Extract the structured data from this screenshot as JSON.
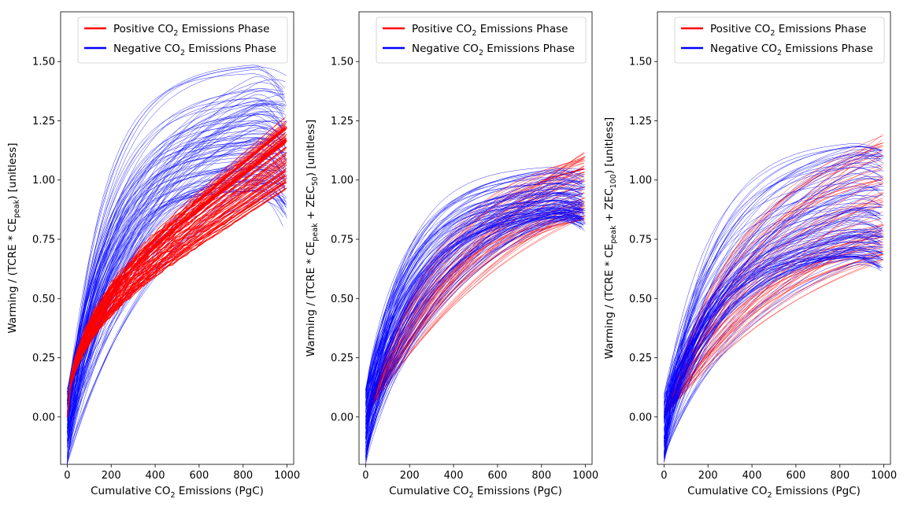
{
  "chart_data": [
    {
      "type": "line",
      "xlabel": {
        "pre": "Cumulative CO",
        "sub": "2",
        "post": " Emissions (PgC)"
      },
      "ylabel": {
        "pre": "Warming / (TCRE * CE",
        "sub": "peak",
        "post": ") [unitless]"
      },
      "xlim": [
        -30,
        1030
      ],
      "ylim": [
        -0.2,
        1.71
      ],
      "xticks": [
        0,
        200,
        400,
        600,
        800,
        1000
      ],
      "yticks": [
        0.0,
        0.25,
        0.5,
        0.75,
        1.0,
        1.25,
        1.5
      ],
      "legend_position": "top-right",
      "series": [
        {
          "name": {
            "pre": "Positive CO",
            "sub": "2",
            "post": " Emissions Phase"
          },
          "color": "#ff0000",
          "representative": {
            "x": [
              0,
              100,
              200,
              300,
              400,
              500,
              600,
              700,
              800,
              900,
              1000
            ],
            "y": [
              0.0,
              0.32,
              0.45,
              0.55,
              0.64,
              0.72,
              0.8,
              0.86,
              0.91,
              0.96,
              1.0
            ]
          },
          "spread_at_end": [
            0.95,
            1.28
          ]
        },
        {
          "name": {
            "pre": "Negative CO",
            "sub": "2",
            "post": " Emissions Phase"
          },
          "color": "#0000ff",
          "representative": {
            "x": [
              1000,
              900,
              800,
              700,
              600,
              500,
              400,
              300,
              200,
              100,
              0
            ],
            "y": [
              1.0,
              1.03,
              1.0,
              0.95,
              0.88,
              0.8,
              0.7,
              0.58,
              0.44,
              0.28,
              0.0
            ]
          },
          "peak_range": [
            0.95,
            1.5
          ],
          "start_range": [
            -0.2,
            0.1
          ]
        }
      ]
    },
    {
      "type": "line",
      "xlabel": {
        "pre": "Cumulative CO",
        "sub": "2",
        "post": " Emissions (PgC)"
      },
      "ylabel": {
        "pre": "Warming / (TCRE * CE",
        "sub": "peak",
        "post": " + ZEC",
        "sub2": "50",
        "post2": ") [unitless]"
      },
      "xlim": [
        -30,
        1030
      ],
      "ylim": [
        -0.2,
        1.71
      ],
      "xticks": [
        0,
        200,
        400,
        600,
        800,
        1000
      ],
      "yticks": [
        0.0,
        0.25,
        0.5,
        0.75,
        1.0,
        1.25,
        1.5
      ],
      "legend_position": "top-right",
      "series": [
        {
          "name": {
            "pre": "Positive CO",
            "sub": "2",
            "post": " Emissions Phase"
          },
          "color": "#ff0000",
          "representative": {
            "x": [
              0,
              100,
              200,
              300,
              400,
              500,
              600,
              700,
              800,
              900,
              1000
            ],
            "y": [
              0.0,
              0.3,
              0.45,
              0.55,
              0.62,
              0.68,
              0.74,
              0.8,
              0.86,
              0.91,
              0.95
            ]
          },
          "spread_at_end": [
            0.83,
            1.12
          ]
        },
        {
          "name": {
            "pre": "Negative CO",
            "sub": "2",
            "post": " Emissions Phase"
          },
          "color": "#0000ff",
          "representative": {
            "x": [
              1000,
              900,
              800,
              700,
              600,
              500,
              400,
              300,
              200,
              100,
              0
            ],
            "y": [
              0.97,
              0.95,
              0.91,
              0.86,
              0.8,
              0.72,
              0.62,
              0.5,
              0.36,
              0.2,
              0.0
            ]
          },
          "peak_range": [
            0.85,
            1.07
          ],
          "start_range": [
            -0.2,
            0.1
          ]
        }
      ]
    },
    {
      "type": "line",
      "xlabel": {
        "pre": "Cumulative CO",
        "sub": "2",
        "post": " Emissions (PgC)"
      },
      "ylabel": {
        "pre": "Warming / (TCRE * CE",
        "sub": "peak",
        "post": " + ZEC",
        "sub2": "100",
        "post2": ") [unitless]"
      },
      "xlim": [
        -30,
        1030
      ],
      "ylim": [
        -0.2,
        1.71
      ],
      "xticks": [
        0,
        200,
        400,
        600,
        800,
        1000
      ],
      "yticks": [
        0.0,
        0.25,
        0.5,
        0.75,
        1.0,
        1.25,
        1.5
      ],
      "legend_position": "top-right",
      "series": [
        {
          "name": {
            "pre": "Positive CO",
            "sub": "2",
            "post": " Emissions Phase"
          },
          "color": "#ff0000",
          "representative": {
            "x": [
              0,
              100,
              200,
              300,
              400,
              500,
              600,
              700,
              800,
              900,
              1000
            ],
            "y": [
              0.0,
              0.28,
              0.42,
              0.52,
              0.6,
              0.66,
              0.72,
              0.78,
              0.84,
              0.88,
              0.93
            ]
          },
          "spread_at_end": [
            0.65,
            1.2
          ]
        },
        {
          "name": {
            "pre": "Negative CO",
            "sub": "2",
            "post": " Emissions Phase"
          },
          "color": "#0000ff",
          "representative": {
            "x": [
              1000,
              900,
              800,
              700,
              600,
              500,
              400,
              300,
              200,
              100,
              0
            ],
            "y": [
              0.93,
              0.88,
              0.84,
              0.8,
              0.76,
              0.7,
              0.62,
              0.52,
              0.4,
              0.24,
              0.0
            ]
          },
          "peak_range": [
            0.68,
            1.17
          ],
          "start_range": [
            -0.2,
            0.1
          ]
        }
      ]
    }
  ]
}
